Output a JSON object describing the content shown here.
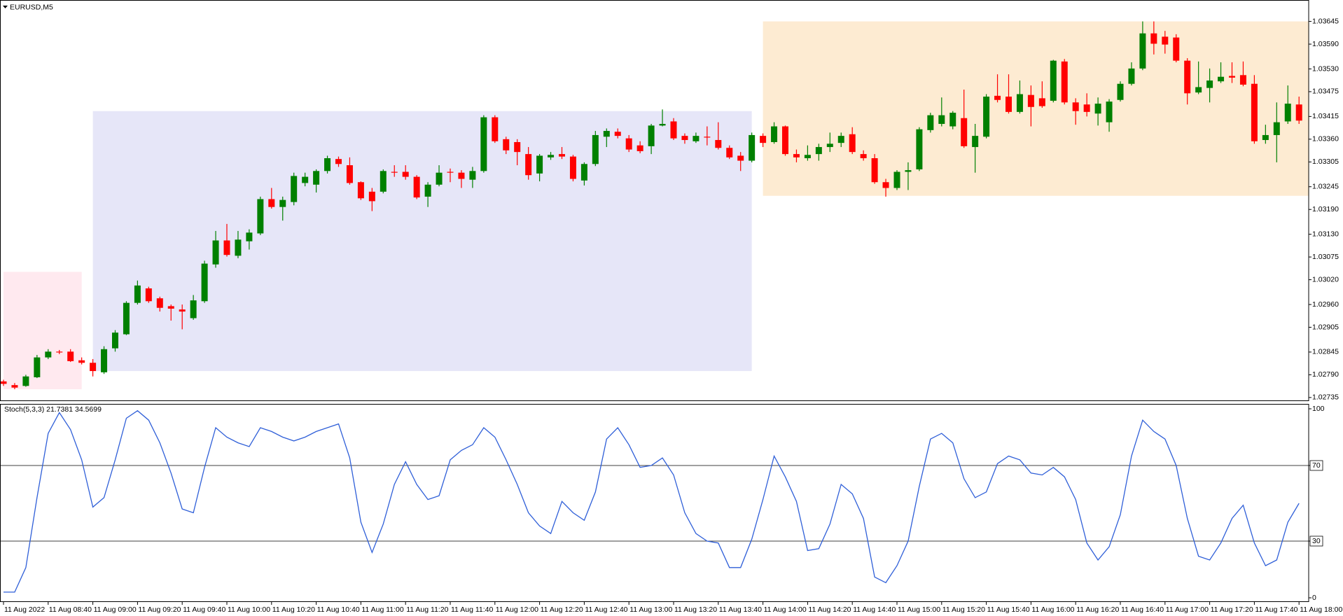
{
  "chart_data": [
    {
      "type": "candlestick",
      "title": "EURUSD,M5",
      "categories": [
        "11 Aug 2022",
        null,
        null,
        null,
        "11 Aug 08:40",
        null,
        null,
        null,
        "11 Aug 09:00",
        null,
        null,
        null,
        "11 Aug 09:20",
        null,
        null,
        null,
        "11 Aug 09:40",
        null,
        null,
        null,
        "11 Aug 10:00",
        null,
        null,
        null,
        "11 Aug 10:20",
        null,
        null,
        null,
        "11 Aug 10:40",
        null,
        null,
        null,
        "11 Aug 11:00",
        null,
        null,
        null,
        "11 Aug 11:20",
        null,
        null,
        null,
        "11 Aug 11:40",
        null,
        null,
        null,
        "11 Aug 12:00",
        null,
        null,
        null,
        "11 Aug 12:20",
        null,
        null,
        null,
        "11 Aug 12:40",
        null,
        null,
        null,
        "11 Aug 13:00",
        null,
        null,
        null,
        "11 Aug 13:20",
        null,
        null,
        null,
        "11 Aug 13:40",
        null,
        null,
        null,
        "11 Aug 14:00",
        null,
        null,
        null,
        "11 Aug 14:20",
        null,
        null,
        null,
        "11 Aug 14:40",
        null,
        null,
        null,
        "11 Aug 15:00",
        null,
        null,
        null,
        "11 Aug 15:20",
        null,
        null,
        null,
        "11 Aug 15:40",
        null,
        null,
        null,
        "11 Aug 16:00",
        null,
        null,
        null,
        "11 Aug 16:20",
        null,
        null,
        null,
        "11 Aug 16:40",
        null,
        null,
        null,
        "11 Aug 17:00",
        null,
        null,
        null,
        "11 Aug 17:20",
        null,
        null,
        null,
        "11 Aug 17:40",
        null,
        null,
        null,
        "11 Aug 18:00"
      ],
      "open": [
        1.02774,
        1.02765,
        1.02763,
        1.02784,
        1.02832,
        1.02846,
        1.02846,
        1.02825,
        1.02819,
        1.02796,
        1.02854,
        1.02888,
        1.02964,
        1.02999,
        1.02975,
        1.02956,
        1.02948,
        1.02927,
        1.02968,
        1.03057,
        1.03115,
        1.03078,
        1.03113,
        1.03132,
        1.03215,
        1.03196,
        1.03208,
        1.03254,
        1.0325,
        1.03283,
        1.03312,
        1.03297,
        1.03256,
        1.03233,
        1.03233,
        1.03281,
        1.03281,
        1.03269,
        1.03221,
        1.0325,
        1.03281,
        1.03279,
        1.03262,
        1.03283,
        1.03413,
        1.0336,
        1.03353,
        1.03324,
        1.03277,
        1.03316,
        1.03324,
        1.03318,
        1.0326,
        1.033,
        1.03366,
        1.03378,
        1.03362,
        1.03345,
        1.03343,
        1.03393,
        1.03403,
        1.03368,
        1.03355,
        1.03366,
        1.03358,
        1.03339,
        1.0332,
        1.03308,
        1.03368,
        1.03353,
        1.03391,
        1.03324,
        1.03314,
        1.03324,
        1.03341,
        1.03351,
        1.03372,
        1.03324,
        1.03314,
        1.03256,
        1.03242,
        1.03281,
        1.03287,
        1.03382,
        1.03397,
        1.03391,
        1.03411,
        1.03341,
        1.03366,
        1.03465,
        1.03463,
        1.03426,
        1.03467,
        1.03459,
        1.03453,
        1.03548,
        1.03449,
        1.03444,
        1.03422,
        1.03401,
        1.03455,
        1.03494,
        1.03531,
        1.03616,
        1.03608,
        1.03606,
        1.0355,
        1.03473,
        1.03484,
        1.035,
        1.03513,
        1.03515,
        1.03494,
        1.03358,
        1.0337,
        1.03403,
        1.03444
      ],
      "high": [
        1.02778,
        1.0277,
        1.0279,
        1.02838,
        1.02852,
        1.0285,
        1.02852,
        1.02832,
        1.02828,
        1.02859,
        1.02898,
        1.02968,
        1.03018,
        1.03003,
        1.02979,
        1.0296,
        1.0296,
        1.02983,
        1.03066,
        1.03138,
        1.03155,
        1.03138,
        1.03142,
        1.03221,
        1.03242,
        1.03221,
        1.03279,
        1.03279,
        1.03287,
        1.0332,
        1.03318,
        1.03316,
        1.03258,
        1.03242,
        1.03287,
        1.03297,
        1.03297,
        1.03273,
        1.03256,
        1.03297,
        1.03289,
        1.03285,
        1.03293,
        1.03418,
        1.03418,
        1.03366,
        1.0336,
        1.03341,
        1.03324,
        1.03329,
        1.03341,
        1.03322,
        1.03304,
        1.0338,
        1.03386,
        1.03386,
        1.0337,
        1.03355,
        1.03397,
        1.03432,
        1.03411,
        1.03374,
        1.03376,
        1.03391,
        1.03401,
        1.03345,
        1.03329,
        1.03376,
        1.03374,
        1.03401,
        1.03393,
        1.03335,
        1.03345,
        1.03349,
        1.03376,
        1.03376,
        1.03389,
        1.03333,
        1.03324,
        1.03264,
        1.03285,
        1.03304,
        1.03389,
        1.03424,
        1.03461,
        1.03428,
        1.0348,
        1.03397,
        1.03469,
        1.03517,
        1.03517,
        1.03502,
        1.0349,
        1.035,
        1.03552,
        1.03554,
        1.03459,
        1.03471,
        1.03461,
        1.03457,
        1.035,
        1.03546,
        1.03645,
        1.03645,
        1.03622,
        1.03614,
        1.03556,
        1.03548,
        1.03531,
        1.03546,
        1.03546,
        1.03548,
        1.03515,
        1.03395,
        1.03449,
        1.0349,
        1.03463
      ],
      "low": [
        1.02763,
        1.02755,
        1.02761,
        1.02782,
        1.02828,
        1.0284,
        1.02821,
        1.02815,
        1.02786,
        1.02792,
        1.02846,
        1.02886,
        1.0296,
        1.02964,
        1.02943,
        1.02921,
        1.029,
        1.02923,
        1.02964,
        1.03049,
        1.03076,
        1.03072,
        1.03093,
        1.03128,
        1.03192,
        1.03163,
        1.032,
        1.03246,
        1.03231,
        1.03277,
        1.03293,
        1.0325,
        1.03213,
        1.03186,
        1.03229,
        1.03269,
        1.03262,
        1.03215,
        1.03196,
        1.03246,
        1.03256,
        1.03242,
        1.03242,
        1.03279,
        1.03351,
        1.03324,
        1.03297,
        1.03262,
        1.03258,
        1.0331,
        1.03312,
        1.03258,
        1.03248,
        1.03295,
        1.03341,
        1.03362,
        1.03329,
        1.03326,
        1.03324,
        1.03391,
        1.03358,
        1.03349,
        1.03351,
        1.03345,
        1.03335,
        1.03312,
        1.03283,
        1.03304,
        1.03341,
        1.03349,
        1.0332,
        1.03304,
        1.03308,
        1.03308,
        1.03329,
        1.03341,
        1.03324,
        1.03308,
        1.03252,
        1.03221,
        1.03237,
        1.03237,
        1.03283,
        1.03376,
        1.03391,
        1.03384,
        1.03339,
        1.03279,
        1.03362,
        1.03449,
        1.03422,
        1.03422,
        1.03391,
        1.03436,
        1.03449,
        1.03444,
        1.03395,
        1.03415,
        1.03393,
        1.03378,
        1.03451,
        1.0349,
        1.03527,
        1.03565,
        1.03567,
        1.03546,
        1.03444,
        1.03469,
        1.03449,
        1.03496,
        1.03496,
        1.03488,
        1.03349,
        1.03349,
        1.03304,
        1.03397,
        1.03397
      ],
      "close": [
        1.02768,
        1.02759,
        1.02786,
        1.02832,
        1.02846,
        1.02844,
        1.02823,
        1.02819,
        1.02799,
        1.02852,
        1.02892,
        1.02964,
        1.03006,
        1.02968,
        1.02952,
        1.0295,
        1.02943,
        1.0297,
        1.03059,
        1.03115,
        1.0308,
        1.03117,
        1.03134,
        1.03215,
        1.03196,
        1.03213,
        1.03271,
        1.03269,
        1.03283,
        1.03314,
        1.033,
        1.03254,
        1.03217,
        1.0321,
        1.03283,
        1.03279,
        1.03269,
        1.03219,
        1.0325,
        1.03279,
        1.03279,
        1.03264,
        1.03283,
        1.03413,
        1.03355,
        1.03333,
        1.03329,
        1.03273,
        1.0332,
        1.03322,
        1.03318,
        1.03264,
        1.033,
        1.0337,
        1.0338,
        1.03368,
        1.03335,
        1.03331,
        1.03393,
        1.03397,
        1.03362,
        1.03358,
        1.03368,
        1.03364,
        1.03339,
        1.03316,
        1.03308,
        1.0337,
        1.03351,
        1.03391,
        1.03324,
        1.03316,
        1.03322,
        1.03341,
        1.03349,
        1.03368,
        1.03329,
        1.03314,
        1.03256,
        1.03242,
        1.03281,
        1.03285,
        1.03384,
        1.03418,
        1.03418,
        1.03424,
        1.03343,
        1.03368,
        1.03463,
        1.03455,
        1.03426,
        1.03469,
        1.03438,
        1.0344,
        1.0355,
        1.03449,
        1.03428,
        1.03426,
        1.03446,
        1.03451,
        1.03494,
        1.03531,
        1.03616,
        1.03591,
        1.03589,
        1.0355,
        1.03471,
        1.03486,
        1.03502,
        1.03511,
        1.03509,
        1.03492,
        1.03355,
        1.0337,
        1.03401,
        1.03446,
        1.03405
      ],
      "up_color": "#008000",
      "down_color": "#ff0000",
      "ylim": [
        1.02728,
        1.0369
      ],
      "yticks": [
        1.03645,
        {
          "value": 1.0359,
          "label": "1.03590"
        },
        {
          "value": 1.0353,
          "label": "1.03530"
        },
        1.03475,
        1.03415,
        {
          "value": 1.0336,
          "label": "1.03360"
        },
        1.03305,
        1.03245,
        {
          "value": 1.0319,
          "label": "1.03190"
        },
        {
          "value": 1.0313,
          "label": "1.03130"
        },
        1.03075,
        {
          "value": 1.0302,
          "label": "1.03020"
        },
        {
          "value": 1.0296,
          "label": "1.02960"
        },
        1.02905,
        1.02845,
        {
          "value": 1.0279,
          "label": "1.02790"
        },
        1.02735
      ],
      "grid": false,
      "zones": [
        {
          "from": 0,
          "to": 7,
          "low": 1.02755,
          "high": 1.03039,
          "color": "#ffe9ef"
        },
        {
          "from": 8,
          "to": 67,
          "low": 1.02799,
          "high": 1.03428,
          "color": "#e6e6f8"
        },
        {
          "from": 68,
          "to": 117,
          "low": 1.03223,
          "high": 1.03645,
          "color": "#fdebd2"
        }
      ]
    },
    {
      "type": "line",
      "title": "Stoch(5,3,3) 21.7381 34.5699",
      "series": [
        {
          "color": "#2f5fd8",
          "values": [
            3,
            3,
            16,
            53,
            87,
            98,
            89,
            73,
            48,
            53,
            73,
            95,
            99,
            94,
            82,
            66,
            47,
            45,
            69,
            90,
            85,
            82,
            80,
            90,
            88,
            85,
            83,
            85,
            88,
            90,
            92,
            74,
            40,
            24,
            39,
            60,
            72,
            60,
            52,
            54,
            73,
            78,
            81,
            90,
            85,
            73,
            60,
            45,
            38,
            34,
            51,
            45,
            41,
            56,
            84,
            90,
            81,
            69,
            70,
            74,
            65,
            45,
            34,
            30,
            29,
            16,
            16,
            31,
            52,
            75,
            64,
            51,
            25,
            26,
            39,
            60,
            55,
            42,
            11,
            8,
            17,
            30,
            59,
            84,
            87,
            82,
            63,
            53,
            56,
            71,
            75,
            73,
            66,
            65,
            69,
            64,
            52,
            29,
            20,
            27,
            44,
            75,
            94,
            88,
            84,
            70,
            42,
            22,
            20,
            29,
            42,
            49,
            29,
            17,
            20,
            40,
            50
          ]
        }
      ],
      "ylim": [
        0,
        100
      ],
      "yticks": [
        0,
        30,
        70,
        100
      ],
      "levels": [
        70,
        30
      ],
      "grid": false
    }
  ]
}
